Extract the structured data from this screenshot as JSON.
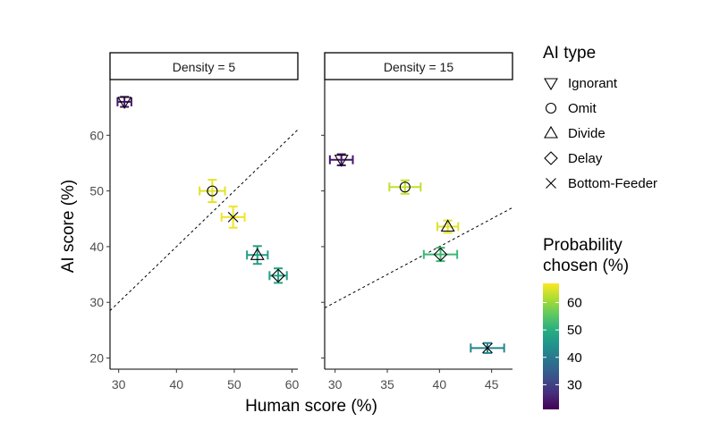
{
  "chart_data": {
    "type": "scatter",
    "x_title": "Human score (%)",
    "y_title": "AI score (%)",
    "legend_shape": {
      "title": "AI type",
      "entries": [
        "Ignorant",
        "Omit",
        "Divide",
        "Delay",
        "Bottom-Feeder"
      ],
      "shapes": [
        "triangle-down",
        "circle",
        "triangle-up",
        "diamond",
        "cross"
      ]
    },
    "legend_color": {
      "title_lines": [
        "Probability",
        "chosen (%)"
      ],
      "range": [
        21,
        67
      ],
      "ticks": [
        30,
        40,
        50,
        60
      ],
      "colormap": "viridis"
    },
    "ylim": [
      18,
      70
    ],
    "y_ticks": [
      20,
      30,
      40,
      50,
      60
    ],
    "panels": [
      {
        "strip": "Density = 5",
        "xlim": [
          28.5,
          61
        ],
        "x_ticks": [
          30,
          40,
          50,
          60
        ],
        "reference_line": "y = x",
        "points": [
          {
            "type": "Ignorant",
            "x": 31.0,
            "y": 66.0,
            "x_err": 1.2,
            "y_err": 0.9,
            "prob": 24
          },
          {
            "type": "Omit",
            "x": 46.2,
            "y": 50.0,
            "x_err": 2.2,
            "y_err": 2.0,
            "prob": 65
          },
          {
            "type": "Bottom-Feeder",
            "x": 49.8,
            "y": 45.3,
            "x_err": 2.0,
            "y_err": 1.9,
            "prob": 66
          },
          {
            "type": "Divide",
            "x": 54.0,
            "y": 38.5,
            "x_err": 1.8,
            "y_err": 1.6,
            "prob": 47
          },
          {
            "type": "Delay",
            "x": 57.6,
            "y": 34.8,
            "x_err": 1.5,
            "y_err": 1.3,
            "prob": 47
          }
        ]
      },
      {
        "strip": "Density = 15",
        "xlim": [
          29,
          47
        ],
        "x_ticks": [
          30,
          35,
          40,
          45
        ],
        "reference_line": "y = x",
        "points": [
          {
            "type": "Ignorant",
            "x": 30.6,
            "y": 55.6,
            "x_err": 1.1,
            "y_err": 1.0,
            "prob": 24
          },
          {
            "type": "Omit",
            "x": 36.7,
            "y": 50.7,
            "x_err": 1.5,
            "y_err": 1.2,
            "prob": 63
          },
          {
            "type": "Divide",
            "x": 40.8,
            "y": 43.6,
            "x_err": 1.0,
            "y_err": 1.1,
            "prob": 65
          },
          {
            "type": "Delay",
            "x": 40.1,
            "y": 38.6,
            "x_err": 1.6,
            "y_err": 1.2,
            "prob": 52
          },
          {
            "type": "Bottom-Feeder",
            "x": 44.6,
            "y": 21.8,
            "x_err": 1.6,
            "y_err": 0.9,
            "prob": 42
          }
        ]
      }
    ]
  }
}
